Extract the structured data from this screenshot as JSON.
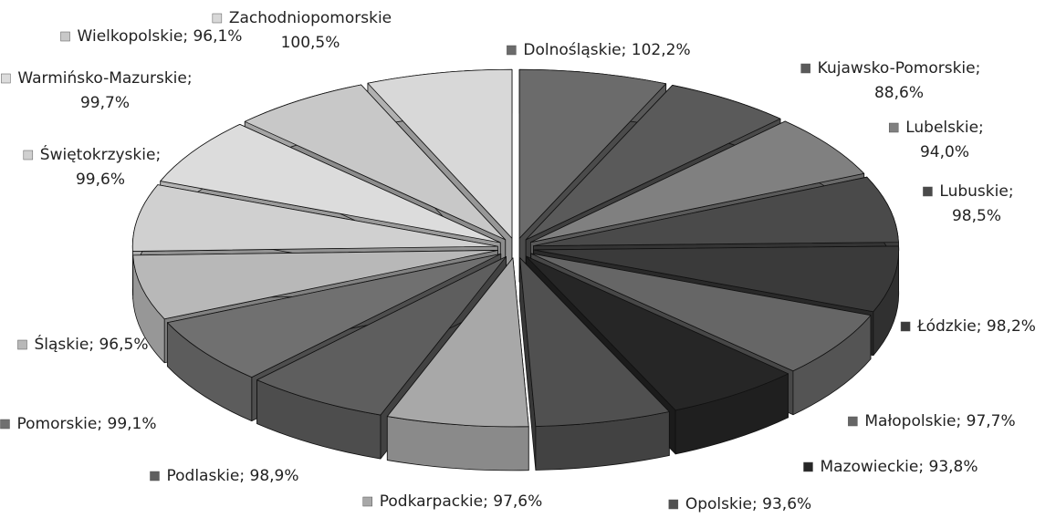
{
  "chart_data": {
    "type": "pie3d",
    "categories": [
      "Dolnośląskie",
      "Kujawsko-Pomorskie",
      "Lubelskie",
      "Lubuskie",
      "Łódzkie",
      "Małopolskie",
      "Mazowieckie",
      "Opolskie",
      "Podkarpackie",
      "Podlaskie",
      "Pomorskie",
      "Śląskie",
      "Świętokrzyskie",
      "Warmińsko-Mazurskie",
      "Wielkopolskie",
      "Zachodniopomorskie"
    ],
    "values": [
      102.2,
      88.6,
      94.0,
      98.5,
      98.2,
      97.7,
      93.8,
      93.6,
      97.6,
      98.9,
      99.1,
      96.5,
      99.6,
      99.7,
      96.1,
      100.5
    ],
    "value_labels": [
      "102,2%",
      "88,6%",
      "94,0%",
      "98,5%",
      "98,2%",
      "97,7%",
      "93,8%",
      "93,6%",
      "97,6%",
      "98,9%",
      "99,1%",
      "96,5%",
      "99,6%",
      "99,7%",
      "96,1%",
      "100,5%"
    ],
    "label_separator": ";",
    "colors": [
      "#6b6b6b",
      "#5a5a5a",
      "#808080",
      "#4a4a4a",
      "#3a3a3a",
      "#666666",
      "#262626",
      "#505050",
      "#a8a8a8",
      "#5e5e5e",
      "#707070",
      "#b8b8b8",
      "#d0d0d0",
      "#dcdcdc",
      "#c8c8c8",
      "#d8d8d8"
    ]
  }
}
